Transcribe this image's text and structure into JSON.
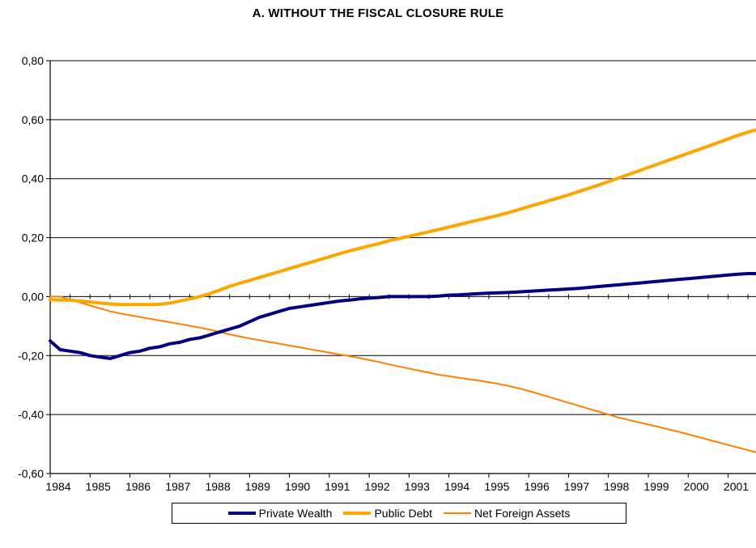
{
  "chart_data": {
    "type": "line",
    "title": "A. WITHOUT THE FISCAL CLOSURE RULE",
    "xlabel": "",
    "ylabel": "",
    "xlim": [
      1984,
      2001.7
    ],
    "ylim": [
      -0.6,
      0.8
    ],
    "yticks": [
      "-0,60",
      "-0,40",
      "-0,20",
      "0,00",
      "0,20",
      "0,40",
      "0,60",
      "0,80"
    ],
    "ytick_values": [
      -0.6,
      -0.4,
      -0.2,
      0.0,
      0.2,
      0.4,
      0.6,
      0.8
    ],
    "xticks": [
      "1984",
      "1985",
      "1986",
      "1987",
      "1988",
      "1989",
      "1990",
      "1991",
      "1992",
      "1993",
      "1994",
      "1995",
      "1996",
      "1997",
      "1998",
      "1999",
      "2000",
      "2001"
    ],
    "xtick_values": [
      1984,
      1985,
      1986,
      1987,
      1988,
      1989,
      1990,
      1991,
      1992,
      1993,
      1994,
      1995,
      1996,
      1997,
      1998,
      1999,
      2000,
      2001
    ],
    "grid": "horizontal",
    "legend_position": "bottom",
    "x": [
      1984.0,
      1984.25,
      1984.5,
      1984.75,
      1985.0,
      1985.25,
      1985.5,
      1985.75,
      1986.0,
      1986.25,
      1986.5,
      1986.75,
      1987.0,
      1987.25,
      1987.5,
      1987.75,
      1988.0,
      1988.25,
      1988.5,
      1988.75,
      1989.0,
      1989.25,
      1989.5,
      1989.75,
      1990.0,
      1990.25,
      1990.5,
      1990.75,
      1991.0,
      1991.25,
      1991.5,
      1991.75,
      1992.0,
      1992.25,
      1992.5,
      1992.75,
      1993.0,
      1993.25,
      1993.5,
      1993.75,
      1994.0,
      1994.25,
      1994.5,
      1994.75,
      1995.0,
      1995.25,
      1995.5,
      1995.75,
      1996.0,
      1996.25,
      1996.5,
      1996.75,
      1997.0,
      1997.25,
      1997.5,
      1997.75,
      1998.0,
      1998.25,
      1998.5,
      1998.75,
      1999.0,
      1999.25,
      1999.5,
      1999.75,
      2000.0,
      2000.25,
      2000.5,
      2000.75,
      2001.0,
      2001.25,
      2001.5,
      2001.7
    ],
    "series": [
      {
        "name": "Private Wealth",
        "color": "#000080",
        "width": 4,
        "values": [
          -0.15,
          -0.18,
          -0.185,
          -0.19,
          -0.2,
          -0.205,
          -0.21,
          -0.2,
          -0.19,
          -0.185,
          -0.175,
          -0.17,
          -0.16,
          -0.155,
          -0.145,
          -0.14,
          -0.13,
          -0.12,
          -0.11,
          -0.1,
          -0.085,
          -0.07,
          -0.06,
          -0.05,
          -0.04,
          -0.035,
          -0.03,
          -0.025,
          -0.02,
          -0.015,
          -0.012,
          -0.008,
          -0.005,
          -0.003,
          0.0,
          0.0,
          0.0,
          0.0,
          0.0,
          0.002,
          0.005,
          0.006,
          0.008,
          0.01,
          0.012,
          0.013,
          0.014,
          0.016,
          0.018,
          0.02,
          0.022,
          0.024,
          0.026,
          0.028,
          0.031,
          0.034,
          0.037,
          0.04,
          0.043,
          0.046,
          0.049,
          0.052,
          0.055,
          0.058,
          0.061,
          0.064,
          0.067,
          0.07,
          0.073,
          0.076,
          0.078,
          0.078
        ]
      },
      {
        "name": "Public Debt",
        "color": "#FFA500",
        "width": 4,
        "values": [
          -0.01,
          -0.012,
          -0.012,
          -0.015,
          -0.018,
          -0.022,
          -0.025,
          -0.027,
          -0.027,
          -0.027,
          -0.027,
          -0.026,
          -0.022,
          -0.015,
          -0.008,
          0.0,
          0.01,
          0.022,
          0.035,
          0.045,
          0.055,
          0.065,
          0.075,
          0.085,
          0.095,
          0.105,
          0.115,
          0.125,
          0.135,
          0.145,
          0.155,
          0.163,
          0.172,
          0.18,
          0.19,
          0.197,
          0.205,
          0.212,
          0.22,
          0.228,
          0.236,
          0.244,
          0.252,
          0.26,
          0.268,
          0.276,
          0.285,
          0.295,
          0.305,
          0.315,
          0.325,
          0.335,
          0.345,
          0.356,
          0.367,
          0.378,
          0.39,
          0.402,
          0.414,
          0.426,
          0.438,
          0.45,
          0.462,
          0.474,
          0.486,
          0.498,
          0.51,
          0.522,
          0.535,
          0.547,
          0.558,
          0.565
        ]
      },
      {
        "name": "Net Foreign Assets",
        "color": "#FF8000",
        "width": 2,
        "values": [
          0.0,
          0.0,
          -0.01,
          -0.02,
          -0.03,
          -0.04,
          -0.05,
          -0.057,
          -0.063,
          -0.069,
          -0.075,
          -0.081,
          -0.087,
          -0.093,
          -0.099,
          -0.105,
          -0.112,
          -0.12,
          -0.128,
          -0.135,
          -0.142,
          -0.148,
          -0.154,
          -0.16,
          -0.166,
          -0.172,
          -0.178,
          -0.184,
          -0.19,
          -0.196,
          -0.202,
          -0.208,
          -0.215,
          -0.222,
          -0.23,
          -0.237,
          -0.244,
          -0.251,
          -0.258,
          -0.265,
          -0.27,
          -0.275,
          -0.28,
          -0.285,
          -0.29,
          -0.296,
          -0.303,
          -0.311,
          -0.32,
          -0.33,
          -0.34,
          -0.35,
          -0.36,
          -0.37,
          -0.38,
          -0.39,
          -0.4,
          -0.41,
          -0.418,
          -0.426,
          -0.434,
          -0.442,
          -0.45,
          -0.458,
          -0.467,
          -0.476,
          -0.485,
          -0.494,
          -0.503,
          -0.512,
          -0.521,
          -0.528
        ]
      }
    ]
  }
}
